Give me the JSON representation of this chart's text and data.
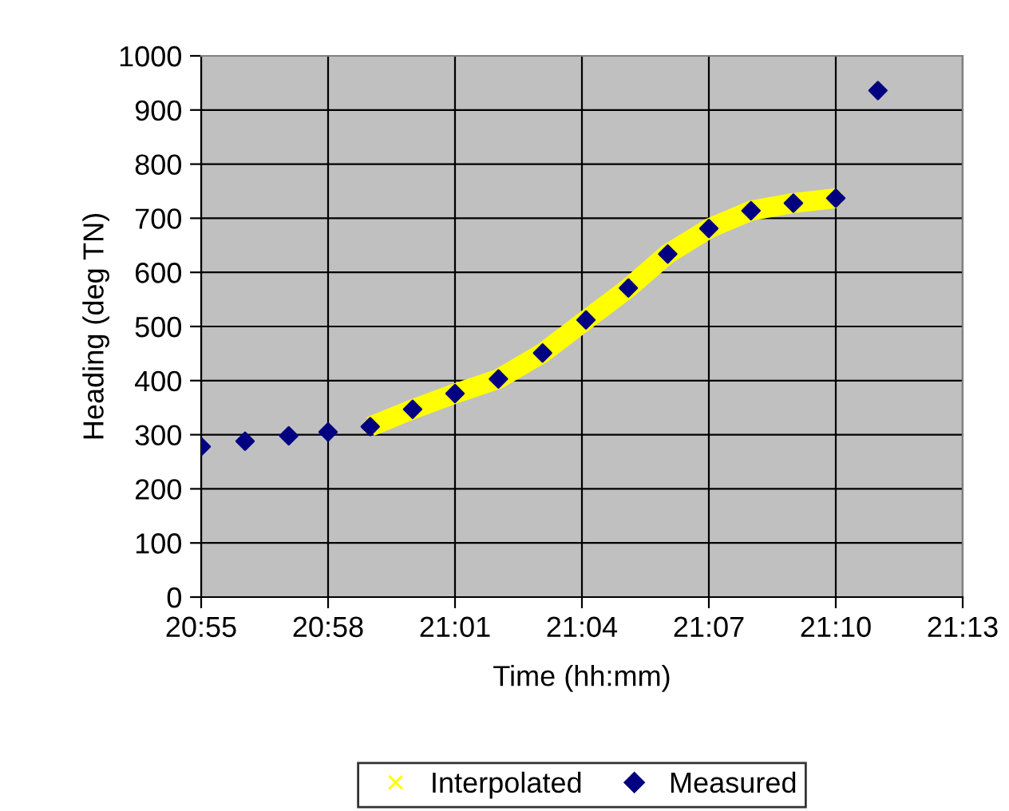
{
  "chart_data": {
    "type": "scatter",
    "xlabel": "Time (hh:mm)",
    "ylabel": "Heading (deg TN)",
    "series": [
      {
        "name": "Interpolated",
        "type": "line",
        "color": "#ffff00",
        "marker": "cross",
        "x": [
          20.9833,
          21.0,
          21.0167,
          21.0338,
          21.0512,
          21.0683,
          21.085,
          21.1005,
          21.1167,
          21.1333,
          21.15,
          21.1667
        ],
        "values": [
          315,
          347,
          376,
          403,
          451,
          512,
          571,
          634,
          681,
          714,
          728,
          737
        ]
      },
      {
        "name": "Measured",
        "color": "#000080",
        "marker": "diamond",
        "x": [
          20.9167,
          20.934,
          20.9512,
          20.9667,
          20.9833,
          21.0,
          21.0167,
          21.0338,
          21.0512,
          21.0683,
          21.085,
          21.1005,
          21.1167,
          21.1333,
          21.15,
          21.1667,
          21.1833
        ],
        "values": [
          278,
          288,
          298,
          305,
          315,
          347,
          376,
          403,
          451,
          512,
          571,
          634,
          681,
          714,
          728,
          737,
          936
        ]
      }
    ],
    "xlim": [
      20.9167,
      21.2167
    ],
    "xticks": [
      {
        "value": 20.9167,
        "label": "20:55"
      },
      {
        "value": 20.9667,
        "label": "20:58"
      },
      {
        "value": 21.0167,
        "label": "21:01"
      },
      {
        "value": 21.0667,
        "label": "21:04"
      },
      {
        "value": 21.1167,
        "label": "21:07"
      },
      {
        "value": 21.1667,
        "label": "21:10"
      },
      {
        "value": 21.2167,
        "label": "21:13"
      }
    ],
    "ylim": [
      0,
      1000
    ],
    "yticks": [
      0,
      100,
      200,
      300,
      400,
      500,
      600,
      700,
      800,
      900,
      1000
    ],
    "grid": true,
    "legend": "bottom"
  }
}
